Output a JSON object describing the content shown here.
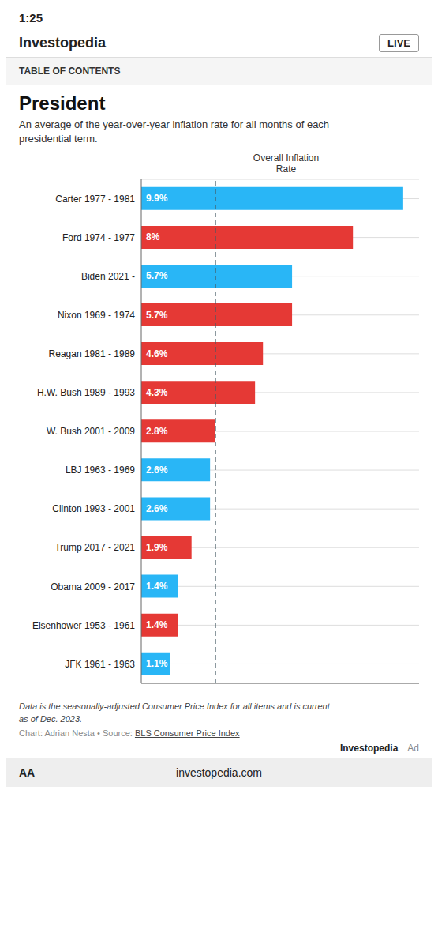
{
  "chart_data": {
    "type": "bar",
    "orientation": "horizontal",
    "title": "President",
    "subtitle": "An average of the year-over-year inflation rate for all months of each\npresidential term.",
    "x_label": "Overall Inflation\nRate",
    "categories": [
      "Carter 1977 - 1981",
      "Ford 1974 - 1977",
      "Biden 2021 -",
      "Nixon 1969 - 1974",
      "Reagan 1981 - 1989",
      "H.W. Bush 1989 - 1993",
      "W. Bush 2001 - 2009",
      "LBJ 1963 - 1969",
      "Clinton 1993 - 2001",
      "Trump 2017 - 2021",
      "Obama 2009 - 2017",
      "Eisenhower 1953 - 1961",
      "JFK 1961 - 1963"
    ],
    "values": [
      9.9,
      8.0,
      5.7,
      5.7,
      4.6,
      4.3,
      2.8,
      2.6,
      2.6,
      1.9,
      1.4,
      1.4,
      1.1
    ],
    "value_labels": [
      "9.9%",
      "8%",
      "5.7%",
      "5.7%",
      "4.6%",
      "4.3%",
      "2.8%",
      "2.6%",
      "2.6%",
      "1.9%",
      "1.4%",
      "1.4%",
      "1.1%"
    ],
    "colors": [
      "#29B6F6",
      "#E53935",
      "#29B6F6",
      "#E53935",
      "#E53935",
      "#E53935",
      "#E53935",
      "#29B6F6",
      "#29B6F6",
      "#E53935",
      "#29B6F6",
      "#E53935",
      "#29B6F6"
    ],
    "data_labels": true,
    "xlim": [
      0,
      10.5
    ],
    "tick_labels": "y",
    "grid": true,
    "reference_line": {
      "x": 2.8,
      "color": "#455A64",
      "line_style": "dashed"
    },
    "footnote": "Data is the seasonally-adjusted Consumer Price Index for all items and is current\nas of Dec. 2023.",
    "source_text": "Chart: Adrian Nesta • Source: ",
    "source_link": "BLS Consumer Price Index",
    "annotations": [
      "1:25",
      "Investopedia",
      "LIVE",
      "TABLE OF CONTENTS",
      "investopedia.com",
      "AA",
      "Investopedia",
      "Ad"
    ]
  }
}
